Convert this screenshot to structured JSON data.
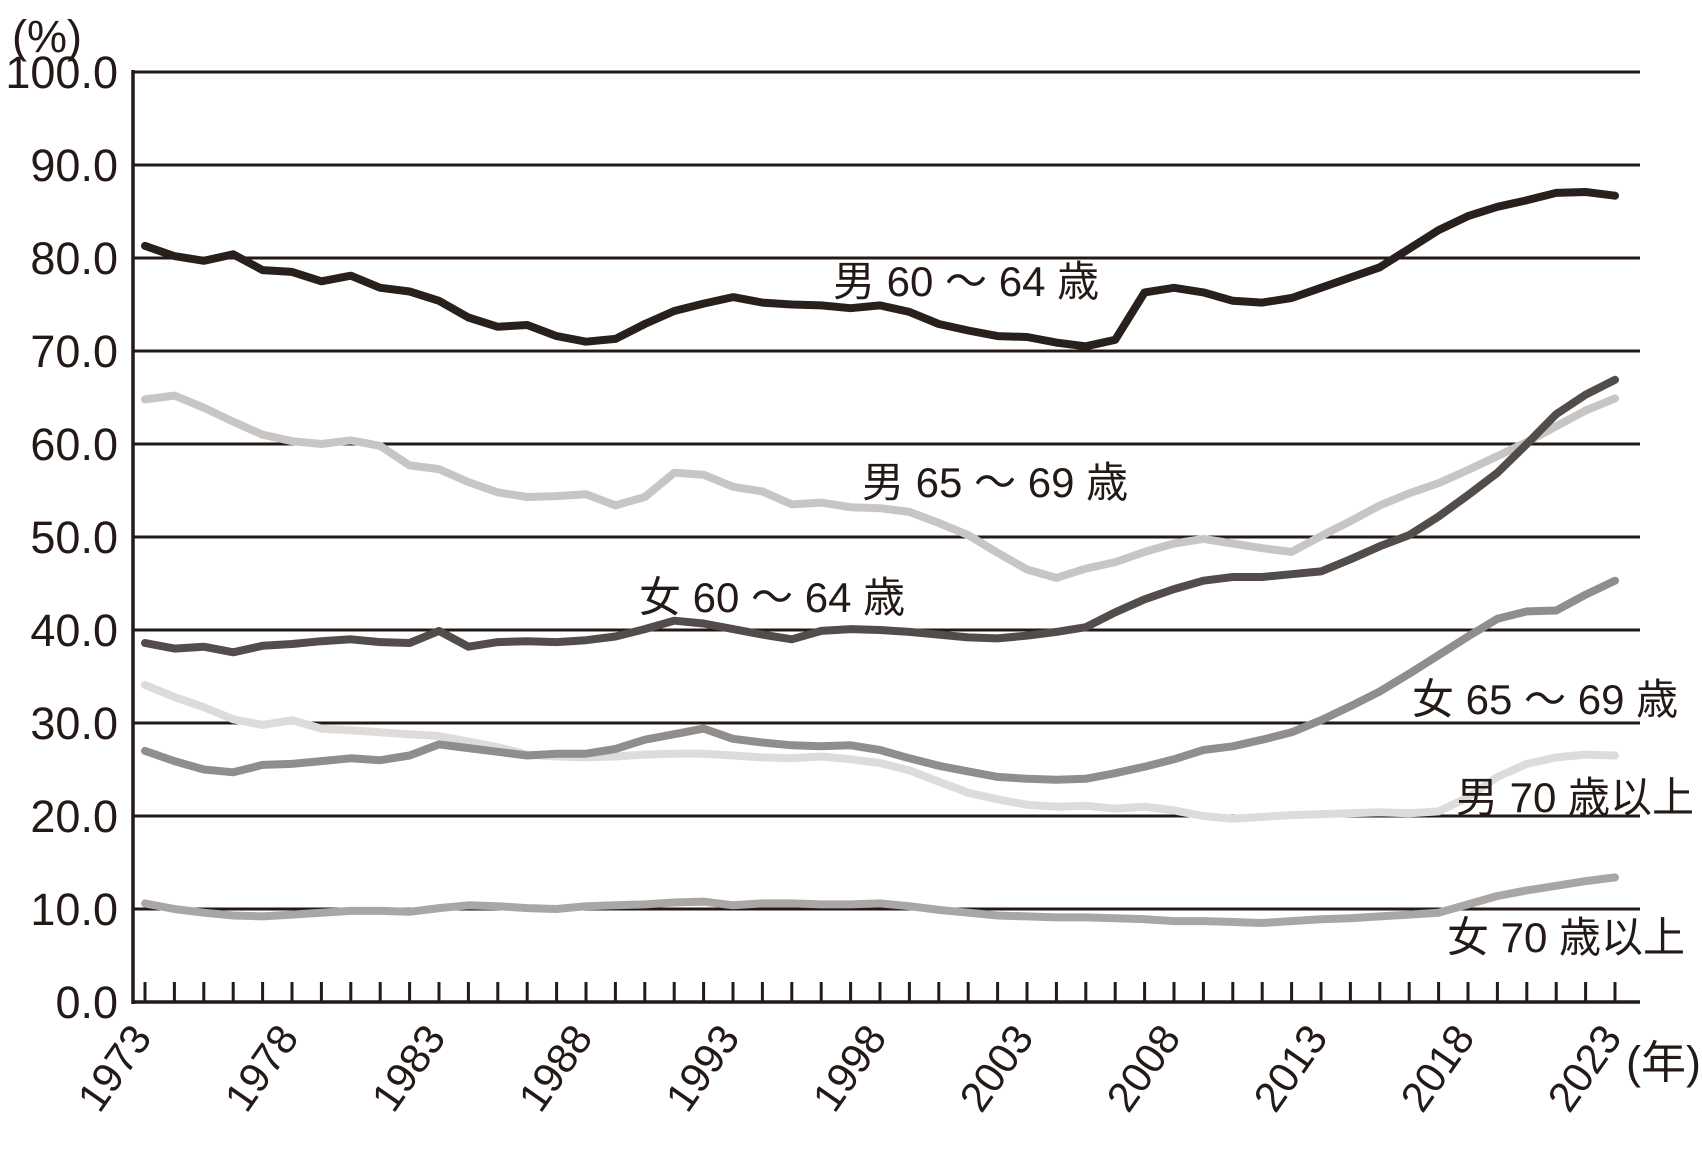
{
  "page": {
    "background": "#ffffff",
    "ink_color": "#231916"
  },
  "chart_data": {
    "type": "line",
    "title": "",
    "grid": true,
    "legend_position": "inline-annotations",
    "y_axis": {
      "unit_label": "(%)",
      "min": 0,
      "max": 100,
      "tick_step": 10,
      "tick_labels": [
        "0.0",
        "10.0",
        "20.0",
        "30.0",
        "40.0",
        "50.0",
        "60.0",
        "70.0",
        "80.0",
        "90.0",
        "100.0"
      ],
      "tick_values": [
        0,
        10,
        20,
        30,
        40,
        50,
        60,
        70,
        80,
        90,
        100
      ]
    },
    "x_axis": {
      "unit_label": "(年)",
      "start_year": 1973,
      "end_year": 2023,
      "tick_every_year": true,
      "labeled_years": [
        1973,
        1978,
        1983,
        1988,
        1993,
        1998,
        2003,
        2008,
        2013,
        2018,
        2023
      ],
      "labeled_year_texts": [
        "1973",
        "1978",
        "1983",
        "1988",
        "1993",
        "1998",
        "2003",
        "2008",
        "2013",
        "2018",
        "2023"
      ]
    },
    "years": [
      1973,
      1974,
      1975,
      1976,
      1977,
      1978,
      1979,
      1980,
      1981,
      1982,
      1983,
      1984,
      1985,
      1986,
      1987,
      1988,
      1989,
      1990,
      1991,
      1992,
      1993,
      1994,
      1995,
      1996,
      1997,
      1998,
      1999,
      2000,
      2001,
      2002,
      2003,
      2004,
      2005,
      2006,
      2007,
      2008,
      2009,
      2010,
      2011,
      2012,
      2013,
      2014,
      2015,
      2016,
      2017,
      2018,
      2019,
      2020,
      2021,
      2022,
      2023
    ],
    "series": [
      {
        "name": "男65～69歳",
        "label": "男 65 ～ 69 歳",
        "slug": "men-65-69",
        "color": "#c7c6c5",
        "label_year": 1997.4,
        "label_value": 54.3,
        "values": [
          64.8,
          65.2,
          63.9,
          62.4,
          61.0,
          60.3,
          60.0,
          60.4,
          59.8,
          57.7,
          57.3,
          55.9,
          54.8,
          54.3,
          54.4,
          54.6,
          53.4,
          54.3,
          56.9,
          56.7,
          55.4,
          54.9,
          53.5,
          53.7,
          53.2,
          53.1,
          52.7,
          51.5,
          50.2,
          48.3,
          46.5,
          45.6,
          46.6,
          47.3,
          48.4,
          49.3,
          49.8,
          49.3,
          48.8,
          48.4,
          50.1,
          51.7,
          53.4,
          54.7,
          55.8,
          57.2,
          58.7,
          60.2,
          61.9,
          63.6,
          64.9
        ]
      },
      {
        "name": "男70歳以上",
        "label": "男 70 歳以上",
        "slug": "men-70-plus",
        "color": "#dddcdb",
        "label_year": 2017.6,
        "label_value": 20.4,
        "values": [
          34.1,
          32.8,
          31.7,
          30.4,
          29.8,
          30.3,
          29.4,
          29.2,
          29.0,
          28.8,
          28.6,
          28.0,
          27.4,
          26.6,
          26.4,
          26.3,
          26.4,
          26.6,
          26.7,
          26.7,
          26.5,
          26.3,
          26.2,
          26.4,
          26.1,
          25.7,
          24.9,
          23.7,
          22.5,
          21.8,
          21.2,
          21.0,
          21.1,
          20.8,
          21.0,
          20.6,
          20.0,
          19.7,
          19.9,
          20.1,
          20.2,
          20.3,
          20.4,
          20.3,
          20.5,
          22.0,
          24.2,
          25.6,
          26.3,
          26.6,
          26.5
        ]
      },
      {
        "name": "女70歳以上",
        "label": "女 70 歳以上",
        "slug": "women-70-plus",
        "color": "#a8a7a6",
        "label_year": 2017.3,
        "label_value": 5.4,
        "values": [
          10.6,
          10.0,
          9.6,
          9.3,
          9.2,
          9.4,
          9.6,
          9.8,
          9.8,
          9.7,
          10.1,
          10.4,
          10.3,
          10.1,
          10.0,
          10.3,
          10.4,
          10.5,
          10.7,
          10.8,
          10.4,
          10.6,
          10.6,
          10.5,
          10.5,
          10.6,
          10.3,
          9.9,
          9.6,
          9.3,
          9.2,
          9.1,
          9.1,
          9.0,
          8.9,
          8.7,
          8.7,
          8.6,
          8.5,
          8.7,
          8.9,
          9.0,
          9.2,
          9.4,
          9.6,
          10.5,
          11.4,
          12.0,
          12.5,
          13.0,
          13.4
        ]
      },
      {
        "name": "女65～69歳",
        "label": "女 65 ～ 69 歳",
        "slug": "women-65-69",
        "color": "#8f8e8d",
        "label_year": 2016.1,
        "label_value": 31.0,
        "values": [
          27.0,
          25.9,
          25.0,
          24.7,
          25.5,
          25.6,
          25.9,
          26.2,
          26.0,
          26.5,
          27.7,
          27.3,
          26.9,
          26.5,
          26.7,
          26.7,
          27.2,
          28.2,
          28.8,
          29.4,
          28.3,
          27.9,
          27.6,
          27.5,
          27.6,
          27.1,
          26.2,
          25.4,
          24.8,
          24.2,
          24.0,
          23.9,
          24.0,
          24.6,
          25.3,
          26.1,
          27.1,
          27.5,
          28.2,
          29.0,
          30.3,
          31.8,
          33.4,
          35.3,
          37.3,
          39.3,
          41.2,
          42.0,
          42.1,
          43.8,
          45.3
        ]
      },
      {
        "name": "女60～64歳",
        "label": "女 60 ～ 64 歳",
        "slug": "women-60-64",
        "color": "#524d4b",
        "label_year": 1989.8,
        "label_value": 41.9,
        "values": [
          38.6,
          38.0,
          38.2,
          37.6,
          38.3,
          38.5,
          38.8,
          39.0,
          38.7,
          38.6,
          39.9,
          38.2,
          38.7,
          38.8,
          38.7,
          38.9,
          39.3,
          40.1,
          41.0,
          40.7,
          40.1,
          39.5,
          39.0,
          39.9,
          40.1,
          40.0,
          39.8,
          39.5,
          39.2,
          39.1,
          39.4,
          39.8,
          40.3,
          41.9,
          43.3,
          44.4,
          45.3,
          45.7,
          45.7,
          46.0,
          46.3,
          47.6,
          49.0,
          50.2,
          52.2,
          54.5,
          56.9,
          60.0,
          63.2,
          65.3,
          66.9
        ]
      },
      {
        "name": "男60～64歳",
        "label": "男 60 ～ 64 歳",
        "slug": "men-60-64",
        "color": "#27201d",
        "label_year": 1996.4,
        "label_value": 75.9,
        "values": [
          81.3,
          80.2,
          79.7,
          80.4,
          78.7,
          78.5,
          77.5,
          78.1,
          76.8,
          76.4,
          75.4,
          73.6,
          72.6,
          72.8,
          71.6,
          71.0,
          71.3,
          72.9,
          74.3,
          75.1,
          75.8,
          75.2,
          75.0,
          74.9,
          74.6,
          74.9,
          74.2,
          72.9,
          72.2,
          71.6,
          71.5,
          70.9,
          70.5,
          71.2,
          76.3,
          76.8,
          76.3,
          75.4,
          75.2,
          75.7,
          76.8,
          77.9,
          79.0,
          81.0,
          83.0,
          84.5,
          85.5,
          86.2,
          87.0,
          87.1,
          86.7
        ]
      }
    ]
  }
}
